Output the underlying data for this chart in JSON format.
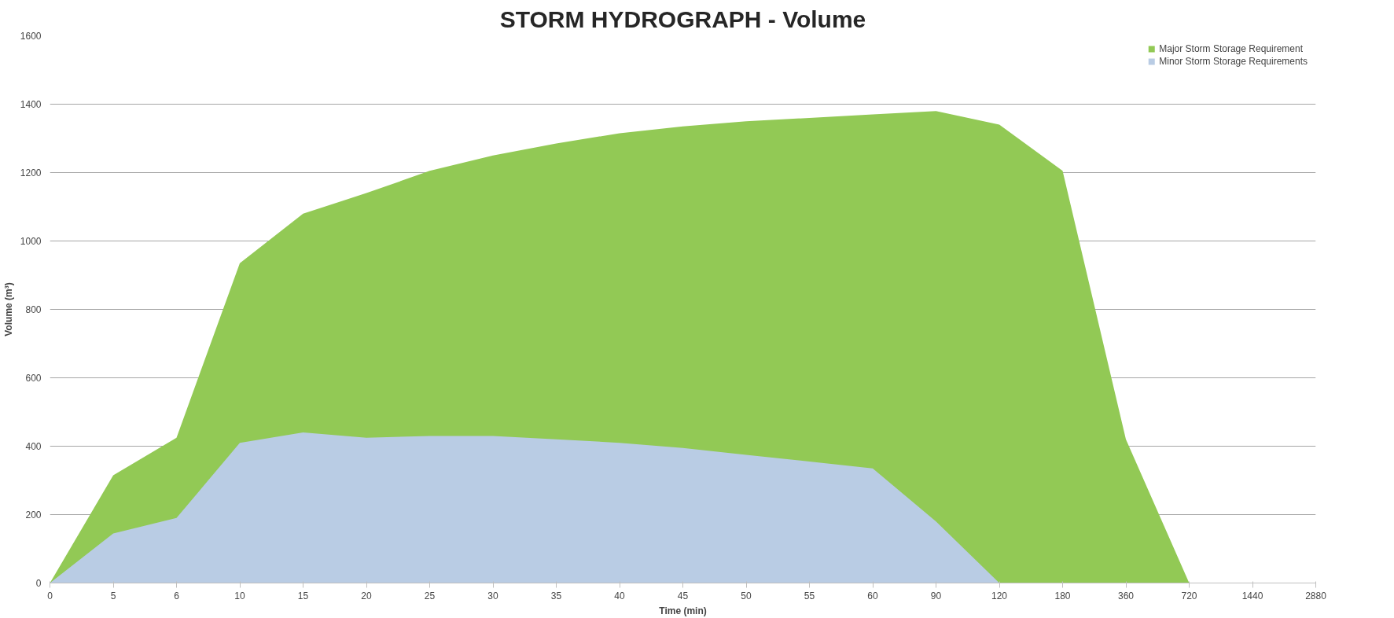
{
  "chart_data": {
    "type": "area",
    "title": "STORM HYDROGRAPH - Volume",
    "xlabel": "Time (min)",
    "ylabel": "Volume (m³)",
    "categories": [
      "0",
      "5",
      "6",
      "10",
      "15",
      "20",
      "25",
      "30",
      "35",
      "40",
      "45",
      "50",
      "55",
      "60",
      "90",
      "120",
      "180",
      "360",
      "720",
      "1440",
      "2880"
    ],
    "series": [
      {
        "name": "Major Storm Storage Requirement",
        "color": "#92c955",
        "values": [
          0,
          315,
          425,
          935,
          1080,
          1140,
          1205,
          1250,
          1285,
          1315,
          1335,
          1350,
          1360,
          1370,
          1380,
          1340,
          1205,
          420,
          0,
          null,
          null
        ]
      },
      {
        "name": "Minor Storm Storage Requirements",
        "color": "#b9cce4",
        "values": [
          0,
          145,
          190,
          410,
          440,
          425,
          430,
          430,
          420,
          410,
          395,
          375,
          355,
          335,
          180,
          0,
          null,
          null,
          null,
          null,
          null
        ]
      }
    ],
    "ylim": [
      0,
      1600
    ],
    "yticks": [
      0,
      200,
      400,
      600,
      800,
      1000,
      1200,
      1400,
      1600
    ],
    "grid": "y",
    "legend": "top right"
  }
}
